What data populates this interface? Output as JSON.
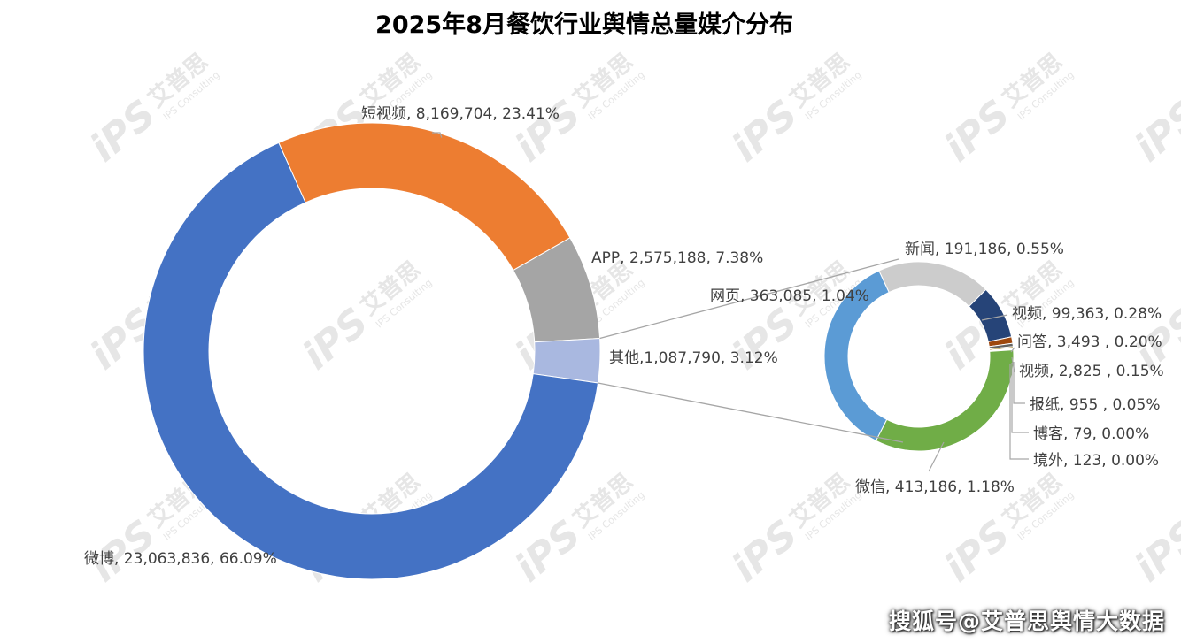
{
  "title": "2025年8月餐饮行业舆情总量媒介分布",
  "footer_text": "搜狐号@艾普思舆情大数据",
  "watermark": {
    "brand": "iPS",
    "cn": "艾普思",
    "en": "IPS Consulting",
    "color": "#e6e6e6"
  },
  "chart_data": [
    {
      "type": "pie",
      "variant": "doughnut",
      "slices": [
        {
          "name": "短视频",
          "value": 8169704,
          "percent": 23.41,
          "label": "短视频, 8,169,704, 23.41%",
          "color": "#ED7D31"
        },
        {
          "name": "APP",
          "value": 2575188,
          "percent": 7.38,
          "label": "APP, 2,575,188, 7.38%",
          "color": "#A5A5A5"
        },
        {
          "name": "其他",
          "value": 1087790,
          "percent": 3.12,
          "label": "其他,1,087,790, 3.12%",
          "color": "#A9B8E0"
        },
        {
          "name": "微博",
          "value": 23063836,
          "percent": 66.09,
          "label": "微博, 23,063,836, 66.09%",
          "color": "#4472C4"
        }
      ]
    },
    {
      "type": "pie",
      "variant": "doughnut",
      "slices": [
        {
          "name": "新闻",
          "value": 191186,
          "percent": 0.55,
          "label": "新闻, 191,186, 0.55%",
          "color": "#CCCCCC"
        },
        {
          "name": "视频",
          "value": 99363,
          "percent": 0.28,
          "label": "视频, 99,363, 0.28%",
          "color": "#264478"
        },
        {
          "name": "问答",
          "value": 3493,
          "percent": 0.2,
          "label": "问答, 3,493 , 0.20%",
          "color": "#9E480E"
        },
        {
          "name": "视频",
          "value": 2825,
          "percent": 0.15,
          "label": "视频, 2,825 , 0.15%",
          "color": "#636363"
        },
        {
          "name": "报纸",
          "value": 955,
          "percent": 0.05,
          "label": "报纸, 955 , 0.05%",
          "color": "#997300"
        },
        {
          "name": "博客",
          "value": 79,
          "percent": 0.0,
          "label": "博客, 79, 0.00%",
          "color": "#43682B"
        },
        {
          "name": "境外",
          "value": 123,
          "percent": 0.0,
          "label": "境外, 123, 0.00%",
          "color": "#698ED0"
        },
        {
          "name": "微信",
          "value": 413186,
          "percent": 1.18,
          "label": "微信, 413,186, 1.18%",
          "color": "#70AD47"
        },
        {
          "name": "网页",
          "value": 363085,
          "percent": 1.04,
          "label": "网页, 363,085, 1.04%",
          "color": "#5B9BD5"
        }
      ]
    }
  ]
}
